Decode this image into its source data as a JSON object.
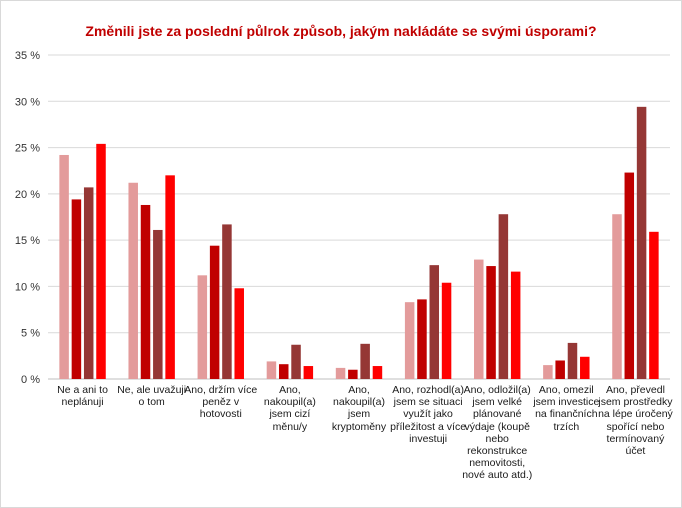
{
  "chart_data": {
    "type": "bar",
    "title": "Změnili jste za poslední půlrok způsob, jakým nakládáte se svými úsporami?",
    "xlabel": "",
    "ylabel": "",
    "ylim": [
      0,
      35
    ],
    "yticks": [
      "0 %",
      "5 %",
      "10 %",
      "15 %",
      "20 %",
      "25 %",
      "30 %",
      "35 %"
    ],
    "grid": true,
    "legend": "none",
    "categories": [
      "Ne a ani to neplánuji",
      "Ne, ale uvažuji o tom",
      "Ano, držím více peněz v hotovosti",
      "Ano, nakoupil(a) jsem cizí měnu/y",
      "Ano, nakoupil(a) jsem kryptoměny",
      "Ano, rozhodl(a) jsem se situaci využít jako příležitost a více investuji",
      "Ano, odložil(a) jsem velké plánované výdaje (koupě nebo rekonstrukce nemovitosti, nové auto atd.)",
      "Ano, omezil jsem investice na finančních trzích",
      "Ano, převedl jsem prostředky na lépe úročený spořící nebo termínovaný účet"
    ],
    "series": [
      {
        "color": "#e39b9b",
        "values": [
          24.2,
          21.2,
          11.2,
          1.9,
          1.2,
          8.3,
          12.9,
          1.5,
          17.8
        ]
      },
      {
        "color": "#c00000",
        "values": [
          19.4,
          18.8,
          14.4,
          1.6,
          1.0,
          8.6,
          12.2,
          2.0,
          22.3
        ]
      },
      {
        "color": "#953735",
        "values": [
          20.7,
          16.1,
          16.7,
          3.7,
          3.8,
          12.3,
          17.8,
          3.9,
          29.4
        ]
      },
      {
        "color": "#ff0000",
        "values": [
          25.4,
          22.0,
          9.8,
          1.4,
          1.4,
          10.4,
          11.6,
          2.4,
          15.9
        ]
      }
    ]
  }
}
